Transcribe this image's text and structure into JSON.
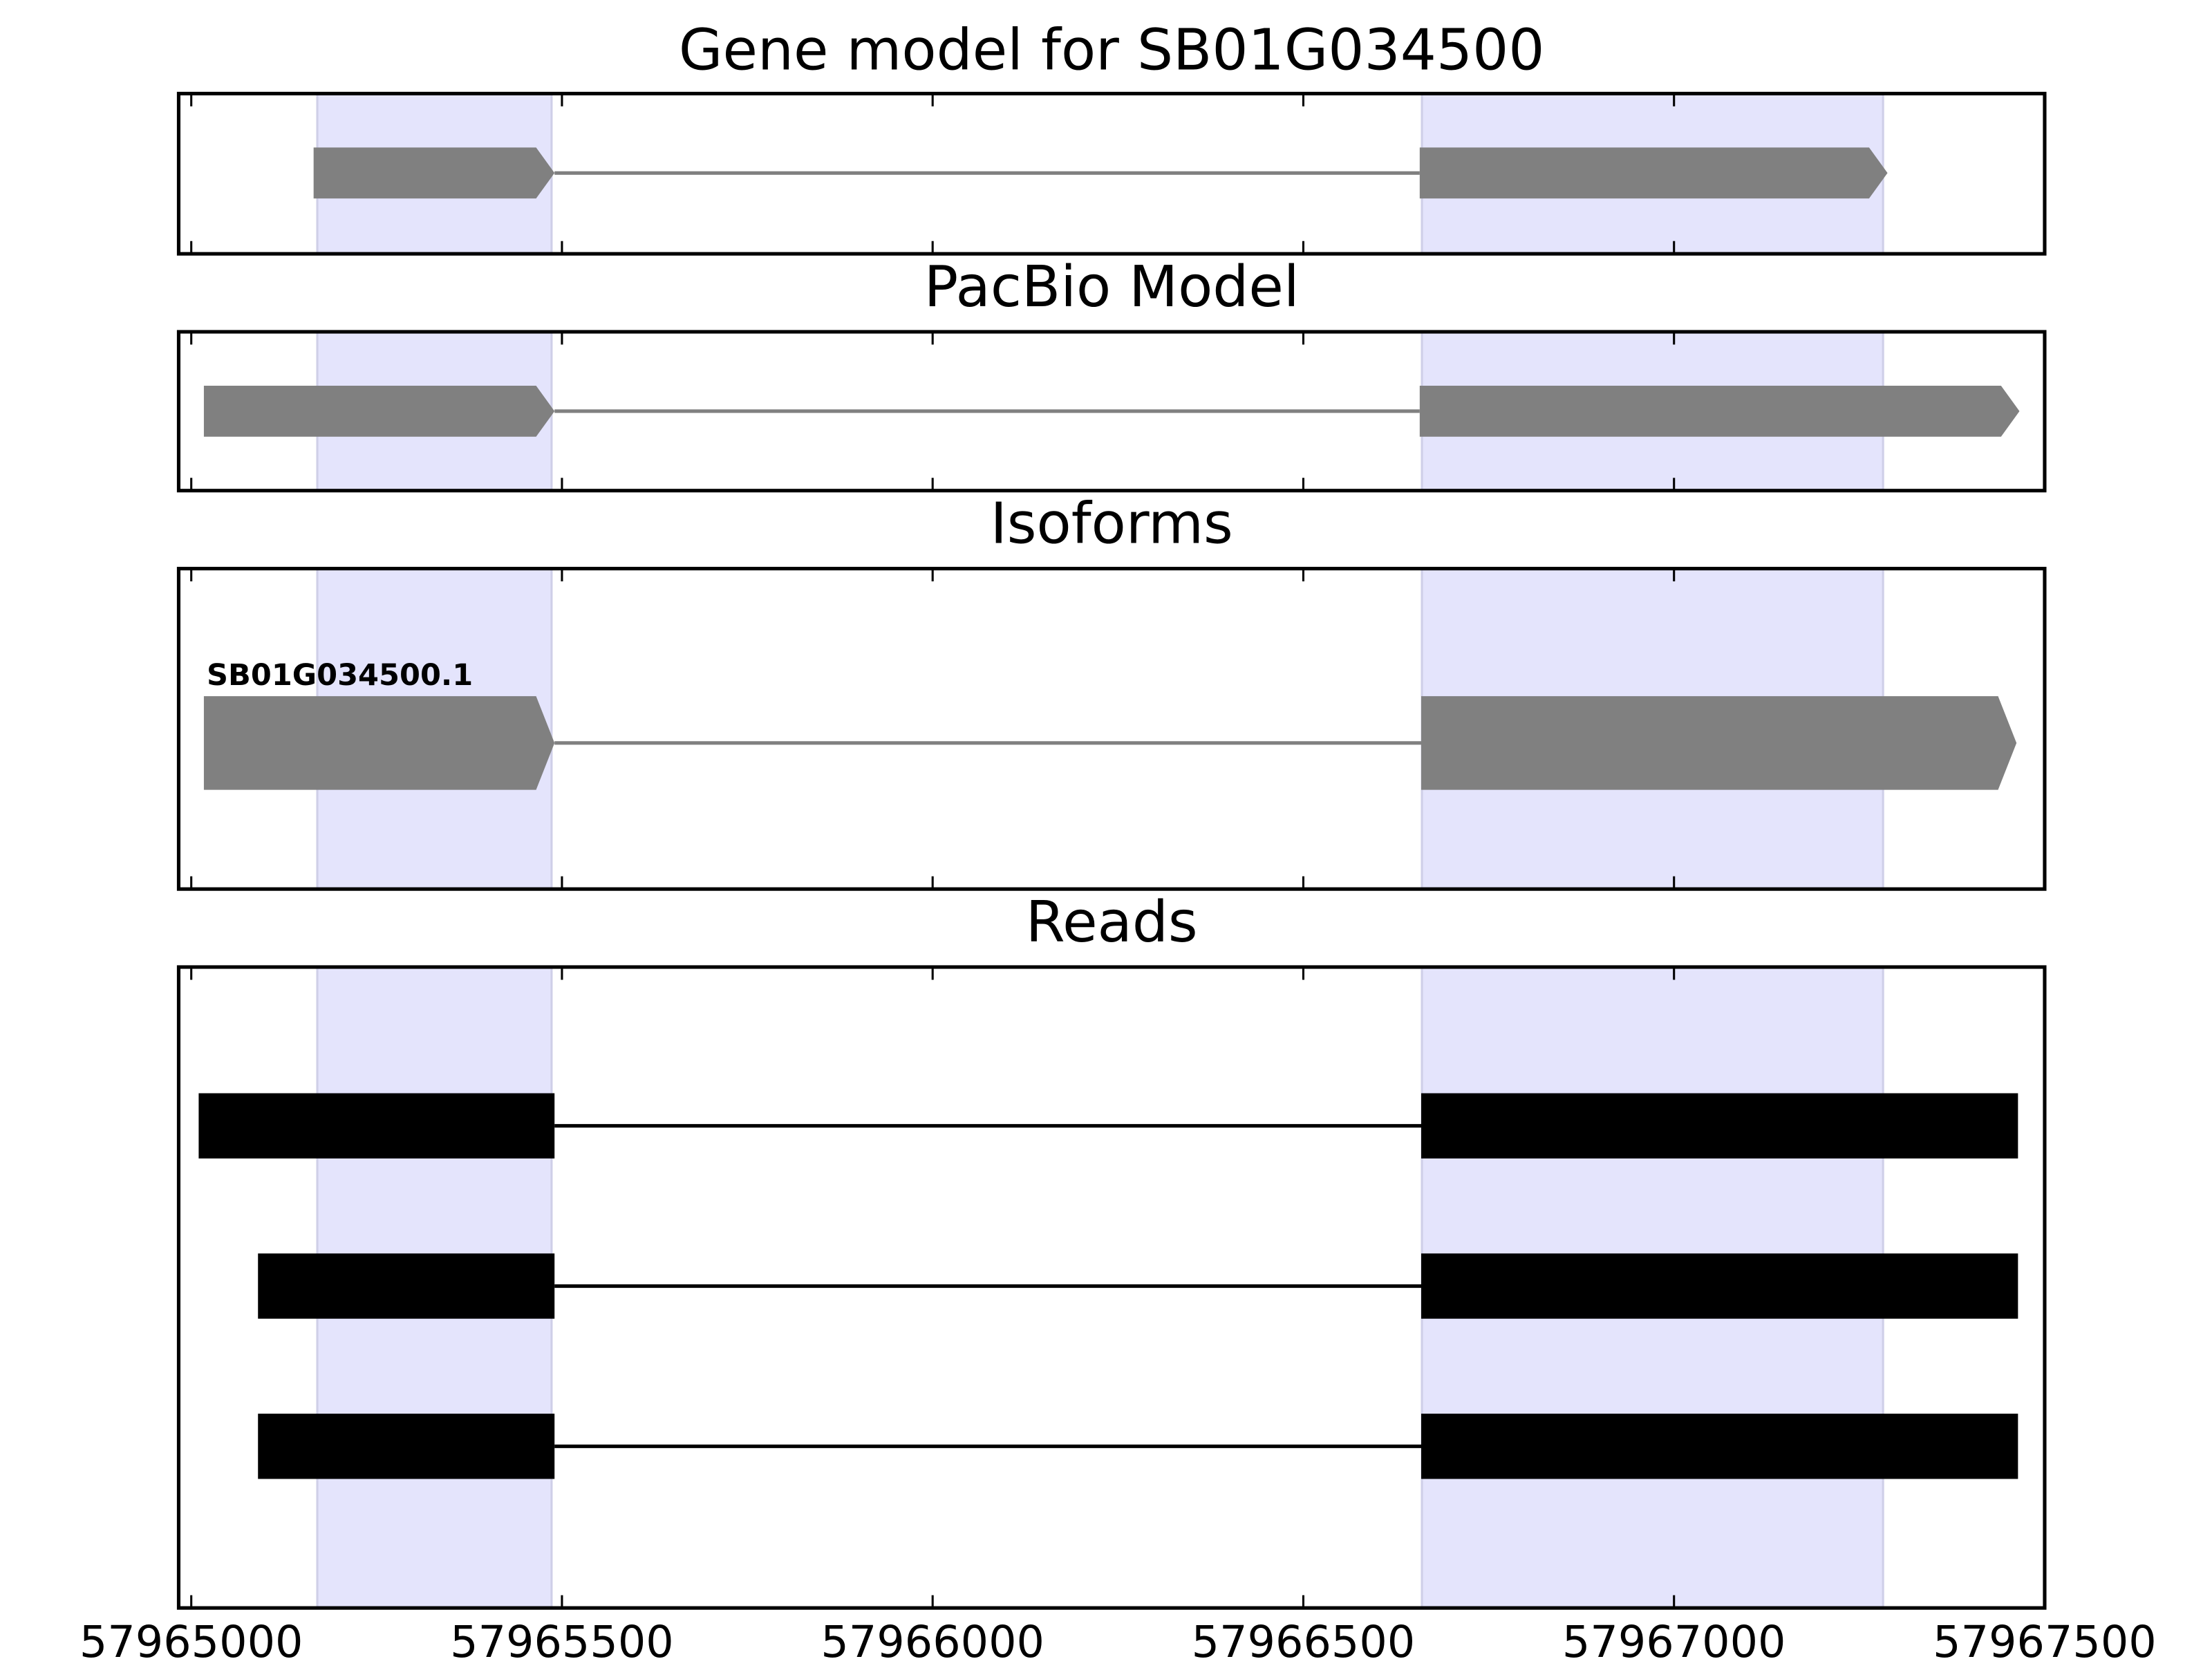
{
  "chart_data": [
    {
      "type": "gene",
      "title": "Gene model for SB01G034500",
      "xlim": [
        57964983,
        57967500
      ],
      "xticks": [
        57965000,
        57965500,
        57966000,
        57966500,
        57967000,
        57967500
      ],
      "highlights": [
        [
          57965170,
          57965486
        ],
        [
          57966660,
          57967282
        ]
      ],
      "highlight_color": "#e4e4fc",
      "color": "#808080",
      "features": [
        {
          "exons": [
            [
              57965165,
              57965490
            ],
            [
              57966657,
              57967288
            ]
          ]
        }
      ]
    },
    {
      "type": "gene",
      "title": "PacBio Model",
      "xlim": [
        57964983,
        57967500
      ],
      "xticks": [
        57965000,
        57965500,
        57966000,
        57966500,
        57967000,
        57967500
      ],
      "highlights": [
        [
          57965170,
          57965486
        ],
        [
          57966660,
          57967282
        ]
      ],
      "highlight_color": "#e4e4fc",
      "color": "#808080",
      "features": [
        {
          "exons": [
            [
              57965017,
              57965490
            ],
            [
              57966657,
              57967466
            ]
          ]
        }
      ]
    },
    {
      "type": "gene",
      "title": "Isoforms",
      "xlim": [
        57964983,
        57967500
      ],
      "xticks": [
        57965000,
        57965500,
        57966000,
        57966500,
        57967000,
        57967500
      ],
      "highlights": [
        [
          57965170,
          57965486
        ],
        [
          57966660,
          57967282
        ]
      ],
      "highlight_color": "#e4e4fc",
      "color": "#808080",
      "features": [
        {
          "name": "SB01G034500.1",
          "exons": [
            [
              57965017,
              57965490
            ],
            [
              57966659,
              57967462
            ]
          ]
        }
      ]
    },
    {
      "type": "reads",
      "title": "Reads",
      "xlim": [
        57964983,
        57967500
      ],
      "xticks": [
        57965000,
        57965500,
        57966000,
        57966500,
        57967000,
        57967500
      ],
      "highlights": [
        [
          57965170,
          57965486
        ],
        [
          57966660,
          57967282
        ]
      ],
      "highlight_color": "#e4e4fc",
      "color": "#000000",
      "features": [
        {
          "exons": [
            [
              57965010,
              57965490
            ],
            [
              57966659,
              57967464
            ]
          ]
        },
        {
          "exons": [
            [
              57965090,
              57965490
            ],
            [
              57966659,
              57967464
            ]
          ]
        },
        {
          "exons": [
            [
              57965090,
              57965490
            ],
            [
              57966659,
              57967464
            ]
          ]
        }
      ]
    }
  ]
}
